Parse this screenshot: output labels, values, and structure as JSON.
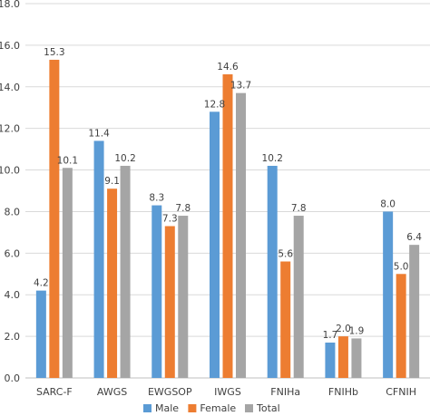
{
  "chart_data": {
    "type": "bar",
    "categories": [
      "SARC-F",
      "AWGS",
      "EWGSOP",
      "IWGS",
      "FNIHa",
      "FNIHb",
      "CFNIH"
    ],
    "series": [
      {
        "name": "Male",
        "color": "#5b9bd5",
        "values": [
          4.2,
          11.4,
          8.3,
          12.8,
          10.2,
          1.7,
          8.0
        ]
      },
      {
        "name": "Female",
        "color": "#ed7d31",
        "values": [
          15.3,
          9.1,
          7.3,
          14.6,
          5.6,
          2.0,
          5.0
        ]
      },
      {
        "name": "Total",
        "color": "#a5a5a5",
        "values": [
          10.1,
          10.2,
          7.8,
          13.7,
          7.8,
          1.9,
          6.4
        ]
      }
    ],
    "ylim": [
      0,
      18
    ],
    "yticks": [
      "0.0",
      "2.0",
      "4.0",
      "6.0",
      "8.0",
      "10.0",
      "12.0",
      "14.0",
      "16.0",
      "18.0"
    ],
    "data_labels": [
      [
        "4.2",
        "11.4",
        "8.3",
        "12.8",
        "10.2",
        "1.7",
        "8.0"
      ],
      [
        "15.3",
        "9.1",
        "7.3",
        "14.6",
        "5.6",
        "2.0",
        "5.0"
      ],
      [
        "10.1",
        "10.2",
        "7.8",
        "13.7",
        "7.8",
        "1.9",
        "6.4"
      ]
    ],
    "grid": true,
    "legend": "bottom-center",
    "title": "",
    "xlabel": "",
    "ylabel": ""
  }
}
